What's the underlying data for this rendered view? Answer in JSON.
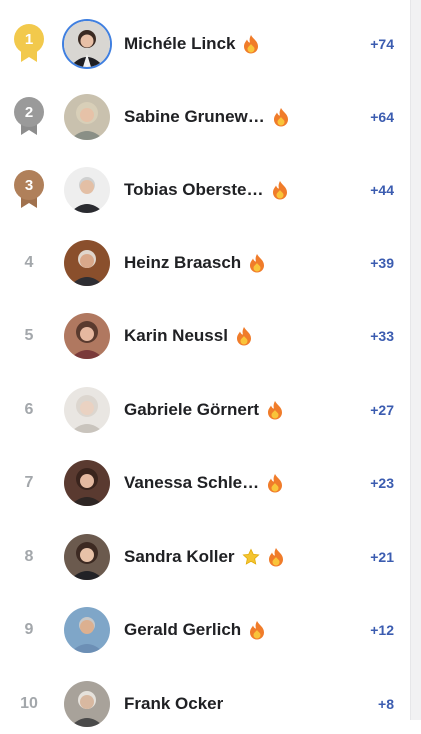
{
  "leaderboard": {
    "rows": [
      {
        "rank": "1",
        "name": "Michéle Linck",
        "score": "+74",
        "badges": [
          "fire-icon"
        ]
      },
      {
        "rank": "2",
        "name": "Sabine Grunew…",
        "score": "+64",
        "badges": [
          "fire-icon"
        ]
      },
      {
        "rank": "3",
        "name": "Tobias Oberste…",
        "score": "+44",
        "badges": [
          "fire-icon"
        ]
      },
      {
        "rank": "4",
        "name": "Heinz Braasch",
        "score": "+39",
        "badges": [
          "fire-icon"
        ]
      },
      {
        "rank": "5",
        "name": "Karin Neussl",
        "score": "+33",
        "badges": [
          "fire-icon"
        ]
      },
      {
        "rank": "6",
        "name": "Gabriele Görnert",
        "score": "+27",
        "badges": [
          "fire-icon"
        ]
      },
      {
        "rank": "7",
        "name": "Vanessa Schle…",
        "score": "+23",
        "badges": [
          "fire-icon"
        ]
      },
      {
        "rank": "8",
        "name": "Sandra Koller",
        "score": "+21",
        "badges": [
          "star-icon",
          "fire-icon"
        ]
      },
      {
        "rank": "9",
        "name": "Gerald Gerlich",
        "score": "+12",
        "badges": [
          "fire-icon"
        ]
      },
      {
        "rank": "10",
        "name": "Frank Ocker",
        "score": "+8",
        "badges": []
      }
    ]
  },
  "colors": {
    "gold": "#f2c94c",
    "silver": "#9a9a9a",
    "bronze": "#b0805a",
    "score": "#3b5cb0",
    "rank_text": "#a3a7ab",
    "avatar_ring": "#3f7fe0"
  }
}
